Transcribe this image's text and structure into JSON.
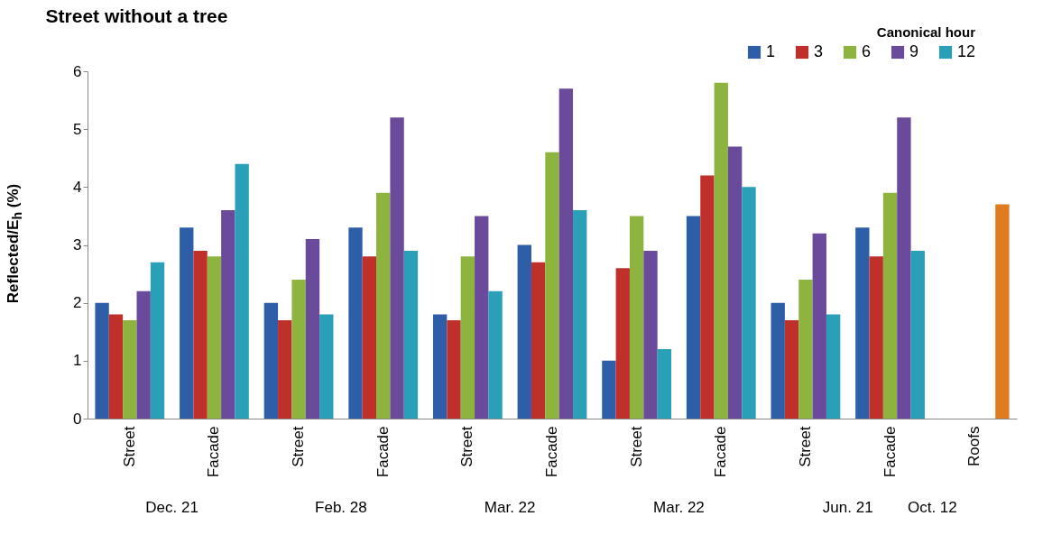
{
  "chart_data": {
    "type": "bar",
    "title": "Street without a tree",
    "ylabel": "Reflected/E$_{h}$ (%)",
    "legend_title": "Canonical hour",
    "categories": [
      "Street",
      "Facade",
      "Street",
      "Facade",
      "Street",
      "Facade",
      "Street",
      "Facade",
      "Street",
      "Facade",
      "Roofs"
    ],
    "annotations": [
      "Dec. 21",
      "Feb. 28",
      "Mar. 22",
      "Mar. 22",
      "Jun. 21",
      "Oct. 12"
    ],
    "series": [
      {
        "name": "1",
        "color": "#2e5ea8",
        "values": [
          2.0,
          3.3,
          2.0,
          3.3,
          1.8,
          3.0,
          1.0,
          3.5,
          2.0,
          3.3,
          null
        ]
      },
      {
        "name": "3",
        "color": "#c0302b",
        "values": [
          1.8,
          2.9,
          1.7,
          2.8,
          1.7,
          2.7,
          2.6,
          4.2,
          1.7,
          2.8,
          null
        ]
      },
      {
        "name": "6",
        "color": "#8db43e",
        "values": [
          1.7,
          2.8,
          2.4,
          3.9,
          2.8,
          4.6,
          3.5,
          5.8,
          2.4,
          3.9,
          null
        ]
      },
      {
        "name": "9",
        "color": "#6a4a9a",
        "values": [
          2.2,
          3.6,
          3.1,
          5.2,
          3.5,
          5.7,
          2.9,
          4.7,
          3.2,
          5.2,
          null
        ]
      },
      {
        "name": "12",
        "color": "#2aa0b8",
        "values": [
          2.7,
          4.4,
          1.8,
          2.9,
          2.2,
          3.6,
          1.2,
          4.0,
          1.8,
          2.9,
          null
        ]
      },
      {
        "color": "#e07b20",
        "values": [
          null,
          null,
          null,
          null,
          null,
          null,
          null,
          null,
          null,
          null,
          3.7
        ]
      }
    ],
    "ylim": [
      0,
      6
    ],
    "yticks": [
      0,
      1,
      2,
      3,
      4,
      5,
      6
    ],
    "grid": false,
    "legend": "top right"
  }
}
